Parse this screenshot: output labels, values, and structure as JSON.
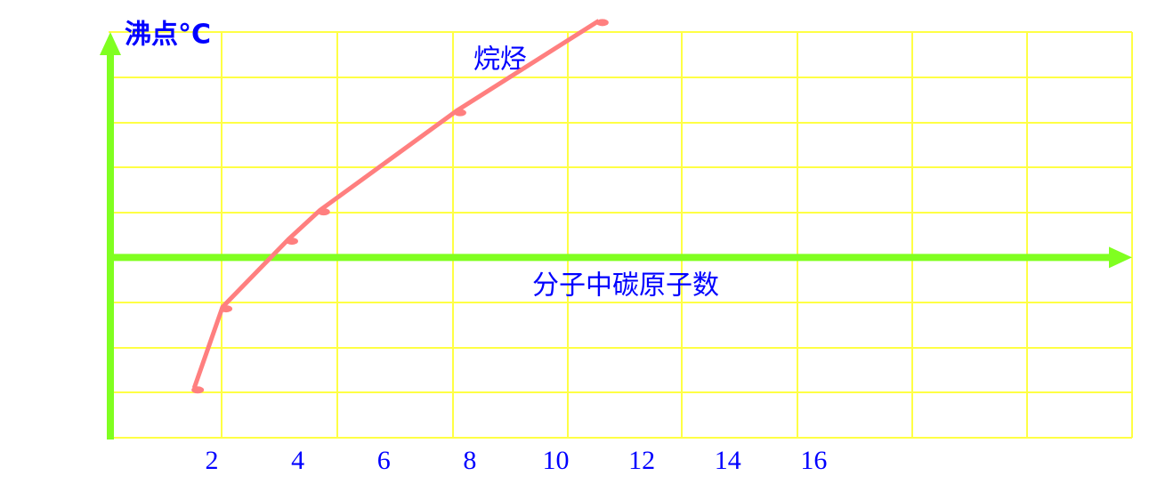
{
  "chart_data": {
    "type": "line",
    "x_label": "分子中碳原子数",
    "y_label": "沸点°C",
    "x": [
      1.59,
      2.25,
      3.78,
      4.52,
      7.69,
      11.0
    ],
    "series": [
      {
        "name": "烷烃",
        "color": "#ff7f7f",
        "values": [
          -2.9,
          -1.1,
          0.4,
          1.05,
          3.25,
          5.25
        ]
      }
    ],
    "xlim": [
      -0.4,
      23.4
    ],
    "ylim": [
      -4,
      5
    ],
    "xticks": [
      2,
      4,
      6,
      8,
      10,
      12,
      14,
      16
    ],
    "grid": true
  }
}
